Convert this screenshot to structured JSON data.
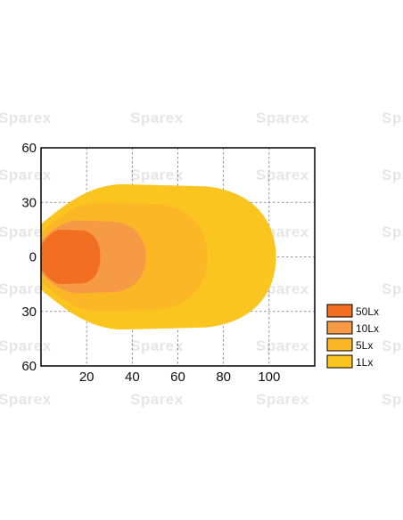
{
  "watermark_text": "Sparex",
  "chart_data": {
    "type": "area",
    "title": "",
    "xlabel": "",
    "ylabel": "",
    "xlim": [
      0,
      120
    ],
    "ylim": [
      -60,
      60
    ],
    "x_ticks": [
      "20",
      "40",
      "60",
      "80",
      "100"
    ],
    "y_ticks": [
      "60",
      "30",
      "0",
      "30",
      "60"
    ],
    "grid": true,
    "legend_position": "right",
    "series": [
      {
        "name": "1Lx",
        "color": "#fbc51f",
        "max_distance": 103,
        "max_half_width": 40
      },
      {
        "name": "5Lx",
        "color": "#fbb726",
        "max_distance": 73,
        "max_half_width": 30
      },
      {
        "name": "10Lx",
        "color": "#f79a46",
        "max_distance": 46,
        "max_half_width": 20
      },
      {
        "name": "50Lx",
        "color": "#f16e23",
        "max_distance": 26,
        "max_half_width": 15
      }
    ],
    "legend": [
      {
        "label": "50Lx",
        "color": "#f16e23"
      },
      {
        "label": "10Lx",
        "color": "#f79a46"
      },
      {
        "label": "5Lx",
        "color": "#fbb726"
      },
      {
        "label": "1Lx",
        "color": "#fbc51f"
      }
    ]
  }
}
